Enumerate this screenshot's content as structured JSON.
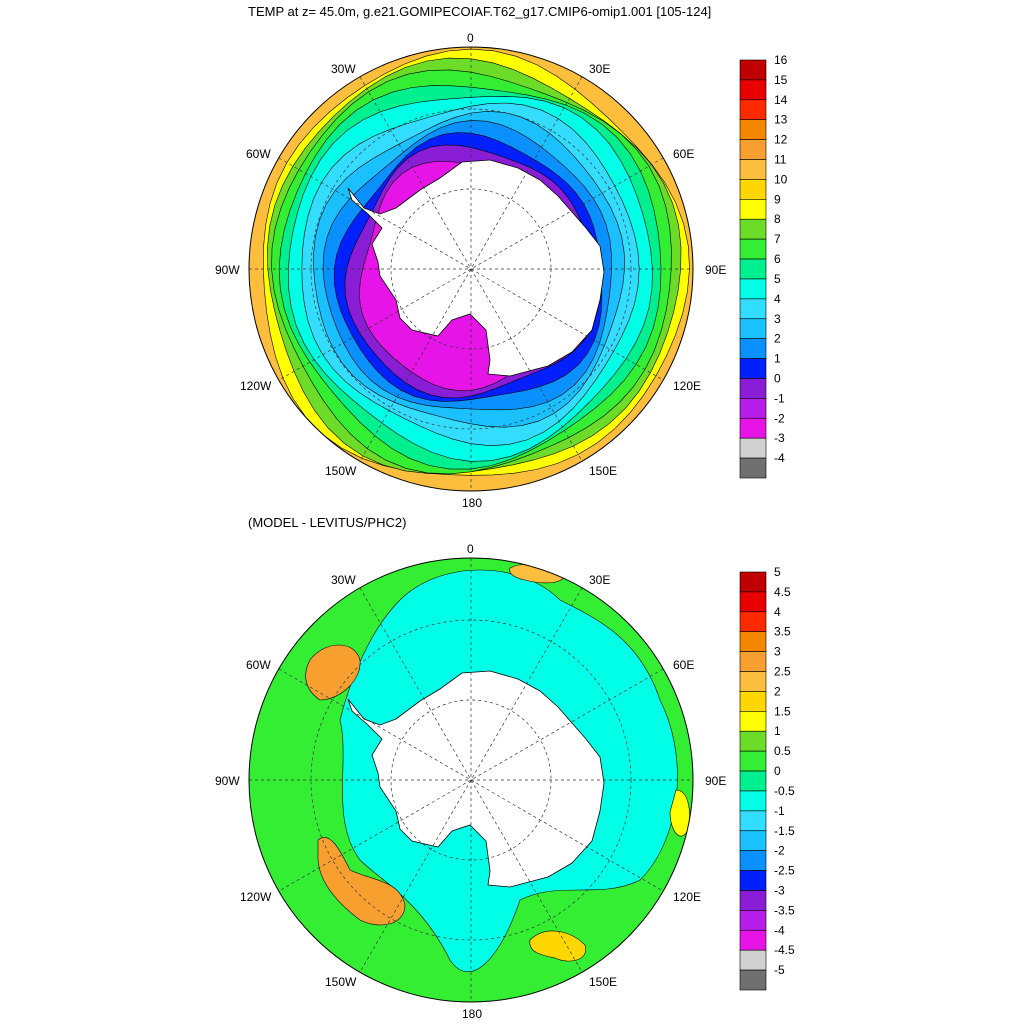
{
  "title": "TEMP at z=  45.0m, g.e21.GOMIPECOIAF.T62_g17.CMIP6-omip1.001 [105-124]",
  "subtitle": "(MODEL - LEVITUS/PHC2)",
  "top_map": {
    "lon_labels": {
      "n": "0",
      "ne": "30E",
      "e1": "60E",
      "e": "90E",
      "se1": "120E",
      "se": "150E",
      "s": "180",
      "sw": "150W",
      "sw1": "120W",
      "w": "90W",
      "nw1": "60W",
      "nw": "30W"
    },
    "colorbar": {
      "labels": [
        "16",
        "15",
        "14",
        "13",
        "12",
        "11",
        "10",
        "9",
        "8",
        "7",
        "6",
        "5",
        "4",
        "3",
        "2",
        "1",
        "0",
        "-1",
        "-2",
        "-3",
        "-4"
      ],
      "colors": [
        "#c00000",
        "#e80000",
        "#ff2a00",
        "#f58700",
        "#f7a030",
        "#fcbe3c",
        "#ffd700",
        "#ffff00",
        "#6cdc28",
        "#33ee33",
        "#00f090",
        "#00ffe6",
        "#33ddff",
        "#1ac0ff",
        "#0a90ff",
        "#0020ff",
        "#8a1ed6",
        "#b41ee6",
        "#e614e6",
        "#d0d0d0",
        "#707070"
      ]
    },
    "rings": [
      {
        "frac": 0.0,
        "color": "#fcbe3c"
      },
      {
        "frac": 0.04,
        "color": "#ffff00"
      },
      {
        "frac": 0.07,
        "color": "#6cdc28"
      },
      {
        "frac": 0.1,
        "color": "#33ee33"
      },
      {
        "frac": 0.14,
        "color": "#00f090"
      },
      {
        "frac": 0.18,
        "color": "#00ffe6"
      },
      {
        "frac": 0.24,
        "color": "#33ddff"
      },
      {
        "frac": 0.3,
        "color": "#1ac0ff"
      },
      {
        "frac": 0.35,
        "color": "#0a90ff"
      },
      {
        "frac": 0.4,
        "color": "#0020ff"
      },
      {
        "frac": 0.44,
        "color": "#8a1ed6"
      },
      {
        "frac": 0.49,
        "color": "#e614e6"
      }
    ]
  },
  "bottom_map": {
    "lon_labels": {
      "n": "0",
      "ne": "30E",
      "e1": "60E",
      "e": "90E",
      "se1": "120E",
      "se": "150E",
      "s": "180",
      "sw": "150W",
      "sw1": "120W",
      "w": "90W",
      "nw1": "60W",
      "nw": "30W"
    },
    "colorbar": {
      "labels": [
        "5",
        "4.5",
        "4",
        "3.5",
        "3",
        "2.5",
        "2",
        "1.5",
        "1",
        "0.5",
        "0",
        "-0.5",
        "-1",
        "-1.5",
        "-2",
        "-2.5",
        "-3",
        "-3.5",
        "-4",
        "-4.5",
        "-5"
      ],
      "colors": [
        "#c00000",
        "#e80000",
        "#ff2a00",
        "#f58700",
        "#f7a030",
        "#fcbe3c",
        "#ffd700",
        "#ffff00",
        "#6cdc28",
        "#33ee33",
        "#00f090",
        "#00ffe6",
        "#33ddff",
        "#1ac0ff",
        "#0a90ff",
        "#0020ff",
        "#8a1ed6",
        "#b41ee6",
        "#e614e6",
        "#d0d0d0",
        "#707070"
      ]
    },
    "base_color": "#33ee33",
    "inner_color": "#00ffe6",
    "blobs": [
      {
        "name": "warm-anomaly-sw",
        "color": "#f7a030"
      },
      {
        "name": "warm-anomaly-nw",
        "color": "#f7a030"
      },
      {
        "name": "warm-anomaly-se",
        "color": "#ffd700"
      },
      {
        "name": "warm-anomaly-ne",
        "color": "#fcbe3c"
      },
      {
        "name": "warm-anomaly-e",
        "color": "#ffff00"
      }
    ]
  }
}
